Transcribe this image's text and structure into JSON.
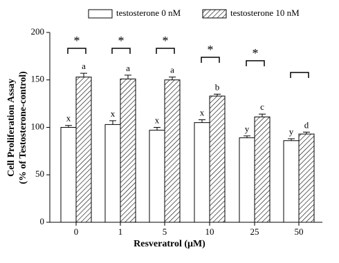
{
  "chart_data": {
    "type": "bar",
    "ylabel": [
      "Cell Proliferation Assay",
      "(% of Testosterone-control)"
    ],
    "xlabel": "Resveratrol (μM)",
    "categories": [
      "0",
      "1",
      "5",
      "10",
      "25",
      "50"
    ],
    "series": [
      {
        "name": "testosterone 0 nM",
        "color": "#ffffff",
        "pattern": "solid",
        "values": [
          100,
          103,
          97,
          105,
          89,
          86
        ],
        "errors": [
          2,
          4,
          3,
          3,
          2,
          2
        ],
        "labels": [
          "x",
          "x",
          "x",
          "x",
          "y",
          "y"
        ]
      },
      {
        "name": "testosterone 10 nM",
        "color": "#ffffff",
        "pattern": "hatch",
        "values": [
          153,
          151,
          150,
          133,
          111,
          93
        ],
        "errors": [
          4,
          4,
          3,
          2,
          3,
          2
        ],
        "labels": [
          "a",
          "a",
          "a",
          "b",
          "c",
          "d"
        ]
      }
    ],
    "significance": [
      "*",
      "*",
      "*",
      "*",
      "*",
      null
    ],
    "ylim": [
      0,
      200
    ],
    "yticks": [
      0,
      50,
      100,
      150,
      200
    ],
    "legend": "top"
  }
}
